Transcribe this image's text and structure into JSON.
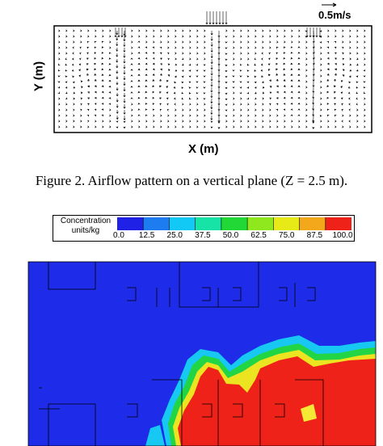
{
  "airflow_figure": {
    "y_axis_label": "Y (m)",
    "x_axis_label": "X (m)",
    "velocity_scale_label": "0.5m/s"
  },
  "caption": "Figure 2.    Airflow pattern on a vertical plane (Z = 2.5 m).",
  "concentration_legend": {
    "title_line1": "Concentration",
    "title_line2": "units/kg",
    "tick_labels": [
      "0.0",
      "12.5",
      "25.0",
      "37.5",
      "50.0",
      "62.5",
      "75.0",
      "87.5",
      "100.0"
    ],
    "colors": [
      "#1f22e6",
      "#1c7cf0",
      "#12c8f5",
      "#18e3a6",
      "#22d837",
      "#8ee81d",
      "#e7ea16",
      "#f2a81a",
      "#ee2219"
    ]
  }
}
